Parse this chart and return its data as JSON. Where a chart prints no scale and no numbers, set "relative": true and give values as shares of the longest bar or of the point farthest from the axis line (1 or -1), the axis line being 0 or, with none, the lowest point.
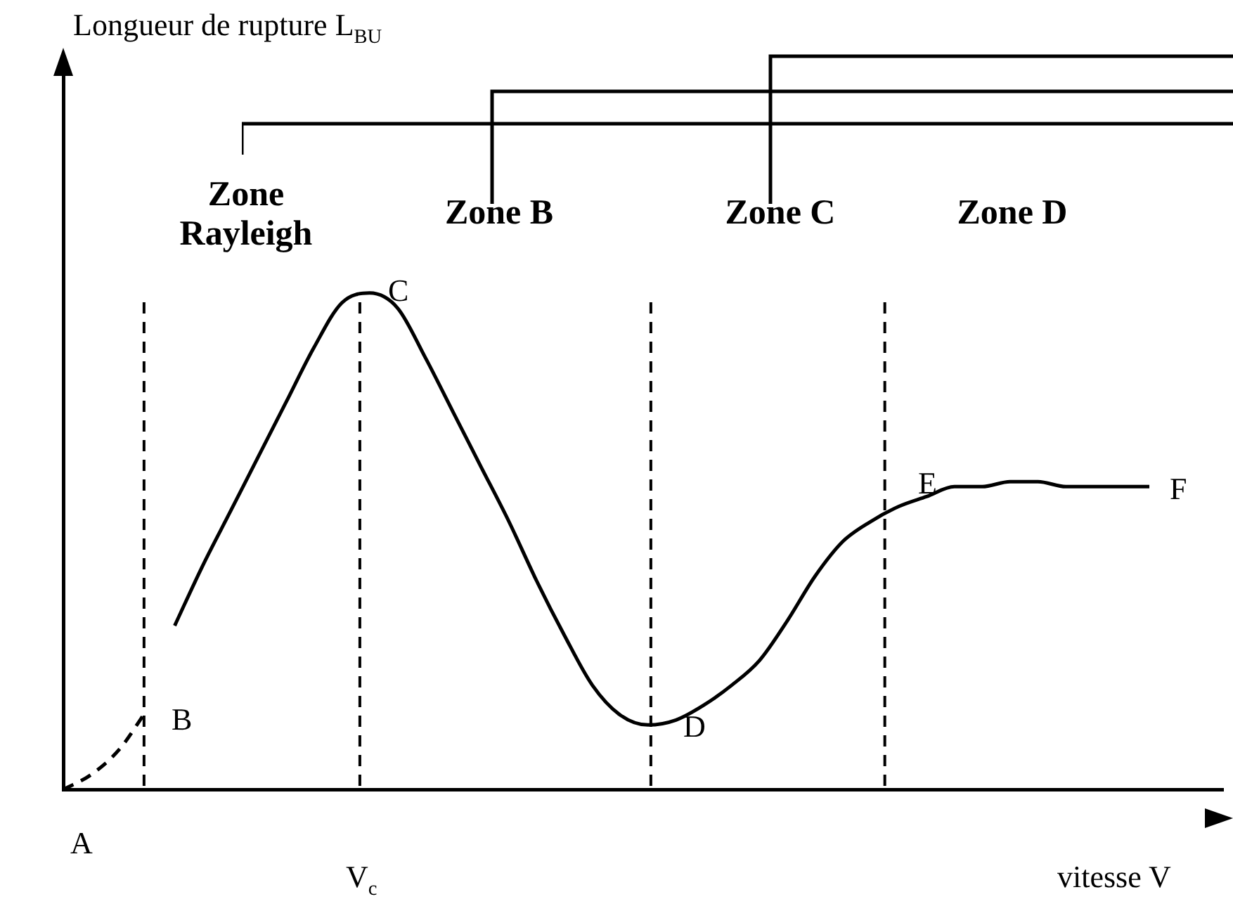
{
  "chart_data": {
    "type": "line",
    "relative": true,
    "xlabel": "vitesse V",
    "marker": "none",
    "categories": [
      null,
      null,
      null,
      null,
      null,
      null,
      null,
      null,
      null,
      null,
      null,
      null,
      null,
      null,
      null,
      null,
      null,
      null,
      null,
      null,
      null,
      null,
      null,
      null,
      null,
      null,
      null,
      null,
      null,
      null,
      null,
      null,
      null,
      null,
      null,
      null,
      null,
      null,
      null,
      null
    ],
    "series": [
      {
        "color": "#000000",
        "line_style": "dashed",
        "values": [
          0,
          0.03,
          0.08,
          0.16,
          null,
          null,
          null,
          null,
          null,
          null,
          null,
          null,
          null,
          null,
          null,
          null,
          null,
          null,
          null,
          null,
          null,
          null,
          null,
          null,
          null,
          null,
          null,
          null,
          null,
          null,
          null,
          null,
          null,
          null,
          null,
          null,
          null,
          null,
          null,
          null
        ]
      },
      {
        "color": "#000000",
        "line_style": "solid",
        "values": [
          null,
          null,
          null,
          null,
          0.33,
          0.45,
          0.56,
          0.67,
          0.78,
          0.89,
          0.98,
          1.0,
          0.97,
          0.87,
          0.76,
          0.65,
          0.54,
          0.42,
          0.31,
          0.21,
          0.15,
          0.13,
          0.14,
          0.17,
          0.21,
          0.26,
          0.34,
          0.43,
          0.5,
          0.54,
          0.57,
          0.59,
          0.61,
          0.61,
          0.62,
          0.62,
          0.61,
          0.61,
          0.61,
          0.61
        ]
      }
    ],
    "annotations": [
      "A",
      "B",
      "C",
      "D",
      "E",
      "F",
      "Zone Rayleigh",
      "Zone B",
      "Zone C",
      "Zone D",
      "V$_{c}$",
      "Longueur de rupture L$_{BU}$"
    ]
  }
}
